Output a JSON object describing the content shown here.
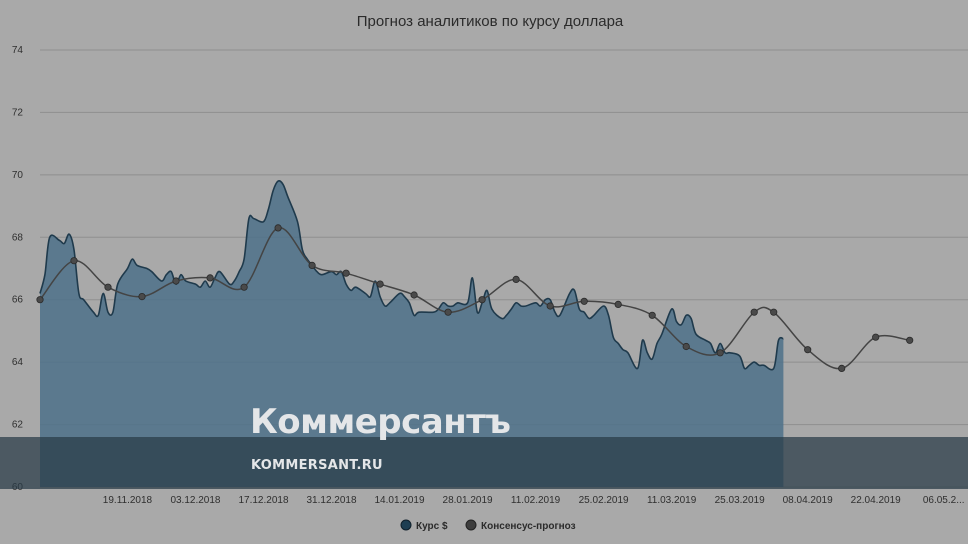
{
  "chart_data": {
    "type": "area",
    "title": "Прогноз аналитиков по курсу доллара",
    "ylim": [
      60,
      74
    ],
    "y_ticks": [
      60,
      62,
      64,
      66,
      68,
      70,
      72,
      74
    ],
    "x_range": [
      "2018-11-01",
      "2019-05-11"
    ],
    "x_ticks": [
      {
        "date": "2018-11-19",
        "label": "19.11.2018"
      },
      {
        "date": "2018-12-03",
        "label": "03.12.2018"
      },
      {
        "date": "2018-12-17",
        "label": "17.12.2018"
      },
      {
        "date": "2018-12-31",
        "label": "31.12.2018"
      },
      {
        "date": "2019-01-14",
        "label": "14.01.2019"
      },
      {
        "date": "2019-01-28",
        "label": "28.01.2019"
      },
      {
        "date": "2019-02-11",
        "label": "11.02.2019"
      },
      {
        "date": "2019-02-25",
        "label": "25.02.2019"
      },
      {
        "date": "2019-03-11",
        "label": "11.03.2019"
      },
      {
        "date": "2019-03-25",
        "label": "25.03.2019"
      },
      {
        "date": "2019-04-08",
        "label": "08.04.2019"
      },
      {
        "date": "2019-04-22",
        "label": "22.04.2019"
      },
      {
        "date": "2019-05-06",
        "label": "06.05.2..."
      }
    ],
    "grid": true,
    "legend": "bottom-center",
    "series": [
      {
        "name": "Курс $",
        "type": "area",
        "color": "#4d7189",
        "points": [
          [
            "2018-11-01",
            66.2
          ],
          [
            "2018-11-02",
            66.8
          ],
          [
            "2018-11-03",
            68.0
          ],
          [
            "2018-11-05",
            67.9
          ],
          [
            "2018-11-06",
            67.8
          ],
          [
            "2018-11-07",
            68.1
          ],
          [
            "2018-11-08",
            67.6
          ],
          [
            "2018-11-09",
            66.2
          ],
          [
            "2018-11-10",
            66.0
          ],
          [
            "2018-11-12",
            65.6
          ],
          [
            "2018-11-13",
            65.5
          ],
          [
            "2018-11-14",
            66.2
          ],
          [
            "2018-11-15",
            65.6
          ],
          [
            "2018-11-16",
            65.6
          ],
          [
            "2018-11-17",
            66.5
          ],
          [
            "2018-11-19",
            67.0
          ],
          [
            "2018-11-20",
            67.3
          ],
          [
            "2018-11-21",
            67.1
          ],
          [
            "2018-11-23",
            67.0
          ],
          [
            "2018-11-24",
            66.9
          ],
          [
            "2018-11-26",
            66.6
          ],
          [
            "2018-11-27",
            66.8
          ],
          [
            "2018-11-28",
            66.9
          ],
          [
            "2018-11-29",
            66.5
          ],
          [
            "2018-11-30",
            66.8
          ],
          [
            "2018-12-01",
            66.6
          ],
          [
            "2018-12-03",
            66.5
          ],
          [
            "2018-12-04",
            66.4
          ],
          [
            "2018-12-05",
            66.6
          ],
          [
            "2018-12-06",
            66.4
          ],
          [
            "2018-12-07",
            66.7
          ],
          [
            "2018-12-08",
            66.9
          ],
          [
            "2018-12-10",
            66.5
          ],
          [
            "2018-12-11",
            66.6
          ],
          [
            "2018-12-12",
            66.9
          ],
          [
            "2018-12-13",
            67.3
          ],
          [
            "2018-12-14",
            68.6
          ],
          [
            "2018-12-15",
            68.6
          ],
          [
            "2018-12-17",
            68.5
          ],
          [
            "2018-12-18",
            68.9
          ],
          [
            "2018-12-19",
            69.5
          ],
          [
            "2018-12-20",
            69.8
          ],
          [
            "2018-12-21",
            69.7
          ],
          [
            "2018-12-22",
            69.3
          ],
          [
            "2018-12-24",
            68.5
          ],
          [
            "2018-12-25",
            67.6
          ],
          [
            "2018-12-26",
            67.3
          ],
          [
            "2018-12-27",
            67.1
          ],
          [
            "2018-12-28",
            66.9
          ],
          [
            "2018-12-29",
            66.8
          ],
          [
            "2018-12-31",
            66.9
          ],
          [
            "2019-01-01",
            66.8
          ],
          [
            "2019-01-02",
            66.9
          ],
          [
            "2019-01-03",
            66.5
          ],
          [
            "2019-01-04",
            66.3
          ],
          [
            "2019-01-05",
            66.4
          ],
          [
            "2019-01-07",
            66.2
          ],
          [
            "2019-01-08",
            66.1
          ],
          [
            "2019-01-09",
            66.6
          ],
          [
            "2019-01-10",
            66.1
          ],
          [
            "2019-01-11",
            65.8
          ],
          [
            "2019-01-12",
            65.9
          ],
          [
            "2019-01-14",
            66.2
          ],
          [
            "2019-01-15",
            66.1
          ],
          [
            "2019-01-16",
            65.9
          ],
          [
            "2019-01-17",
            65.5
          ],
          [
            "2019-01-18",
            65.6
          ],
          [
            "2019-01-21",
            65.6
          ],
          [
            "2019-01-22",
            65.7
          ],
          [
            "2019-01-23",
            65.9
          ],
          [
            "2019-01-24",
            65.8
          ],
          [
            "2019-01-25",
            65.8
          ],
          [
            "2019-01-26",
            65.9
          ],
          [
            "2019-01-28",
            65.9
          ],
          [
            "2019-01-29",
            66.7
          ],
          [
            "2019-01-30",
            65.6
          ],
          [
            "2019-01-31",
            65.9
          ],
          [
            "2019-02-01",
            66.3
          ],
          [
            "2019-02-02",
            65.7
          ],
          [
            "2019-02-04",
            65.4
          ],
          [
            "2019-02-05",
            65.5
          ],
          [
            "2019-02-06",
            65.7
          ],
          [
            "2019-02-07",
            65.9
          ],
          [
            "2019-02-08",
            65.8
          ],
          [
            "2019-02-09",
            65.8
          ],
          [
            "2019-02-11",
            65.9
          ],
          [
            "2019-02-12",
            65.8
          ],
          [
            "2019-02-13",
            66.0
          ],
          [
            "2019-02-14",
            66.0
          ],
          [
            "2019-02-15",
            65.6
          ],
          [
            "2019-02-16",
            65.5
          ],
          [
            "2019-02-18",
            66.2
          ],
          [
            "2019-02-19",
            66.3
          ],
          [
            "2019-02-20",
            65.7
          ],
          [
            "2019-02-21",
            65.6
          ],
          [
            "2019-02-22",
            65.4
          ],
          [
            "2019-02-23",
            65.5
          ],
          [
            "2019-02-25",
            65.8
          ],
          [
            "2019-02-26",
            65.5
          ],
          [
            "2019-02-27",
            64.8
          ],
          [
            "2019-02-28",
            64.6
          ],
          [
            "2019-03-01",
            64.4
          ],
          [
            "2019-03-02",
            64.3
          ],
          [
            "2019-03-04",
            63.8
          ],
          [
            "2019-03-05",
            64.7
          ],
          [
            "2019-03-06",
            64.3
          ],
          [
            "2019-03-07",
            64.1
          ],
          [
            "2019-03-08",
            64.6
          ],
          [
            "2019-03-09",
            64.9
          ],
          [
            "2019-03-11",
            65.7
          ],
          [
            "2019-03-12",
            65.3
          ],
          [
            "2019-03-13",
            65.2
          ],
          [
            "2019-03-14",
            65.5
          ],
          [
            "2019-03-15",
            65.4
          ],
          [
            "2019-03-16",
            64.9
          ],
          [
            "2019-03-18",
            64.7
          ],
          [
            "2019-03-19",
            64.6
          ],
          [
            "2019-03-20",
            64.3
          ],
          [
            "2019-03-21",
            64.6
          ],
          [
            "2019-03-22",
            64.3
          ],
          [
            "2019-03-23",
            64.3
          ],
          [
            "2019-03-25",
            64.2
          ],
          [
            "2019-03-26",
            63.8
          ],
          [
            "2019-03-27",
            63.9
          ],
          [
            "2019-03-28",
            64.0
          ],
          [
            "2019-03-29",
            63.9
          ],
          [
            "2019-03-30",
            63.9
          ],
          [
            "2019-04-01",
            63.8
          ],
          [
            "2019-04-02",
            64.7
          ],
          [
            "2019-04-03",
            64.75
          ]
        ]
      },
      {
        "name": "Консенсус-прогноз",
        "type": "line",
        "color": "#444444",
        "points": [
          [
            "2018-11-01",
            66.0
          ],
          [
            "2018-11-08",
            67.25
          ],
          [
            "2018-11-15",
            66.4
          ],
          [
            "2018-11-22",
            66.1
          ],
          [
            "2018-11-29",
            66.6
          ],
          [
            "2018-12-06",
            66.7
          ],
          [
            "2018-12-13",
            66.4
          ],
          [
            "2018-12-20",
            68.3
          ],
          [
            "2018-12-27",
            67.1
          ],
          [
            "2019-01-03",
            66.85
          ],
          [
            "2019-01-10",
            66.5
          ],
          [
            "2019-01-17",
            66.15
          ],
          [
            "2019-01-24",
            65.6
          ],
          [
            "2019-01-31",
            66.0
          ],
          [
            "2019-02-07",
            66.65
          ],
          [
            "2019-02-14",
            65.8
          ],
          [
            "2019-02-21",
            65.95
          ],
          [
            "2019-02-28",
            65.85
          ],
          [
            "2019-03-07",
            65.5
          ],
          [
            "2019-03-14",
            64.5
          ],
          [
            "2019-03-21",
            64.3
          ],
          [
            "2019-03-28",
            65.6
          ],
          [
            "2019-04-01",
            65.6
          ],
          [
            "2019-04-08",
            64.4
          ],
          [
            "2019-04-15",
            63.8
          ],
          [
            "2019-04-22",
            64.8
          ],
          [
            "2019-04-29",
            64.7
          ]
        ]
      }
    ]
  },
  "watermark": {
    "logo": "Коммерсантъ",
    "url": "KOMMERSANT.RU"
  }
}
